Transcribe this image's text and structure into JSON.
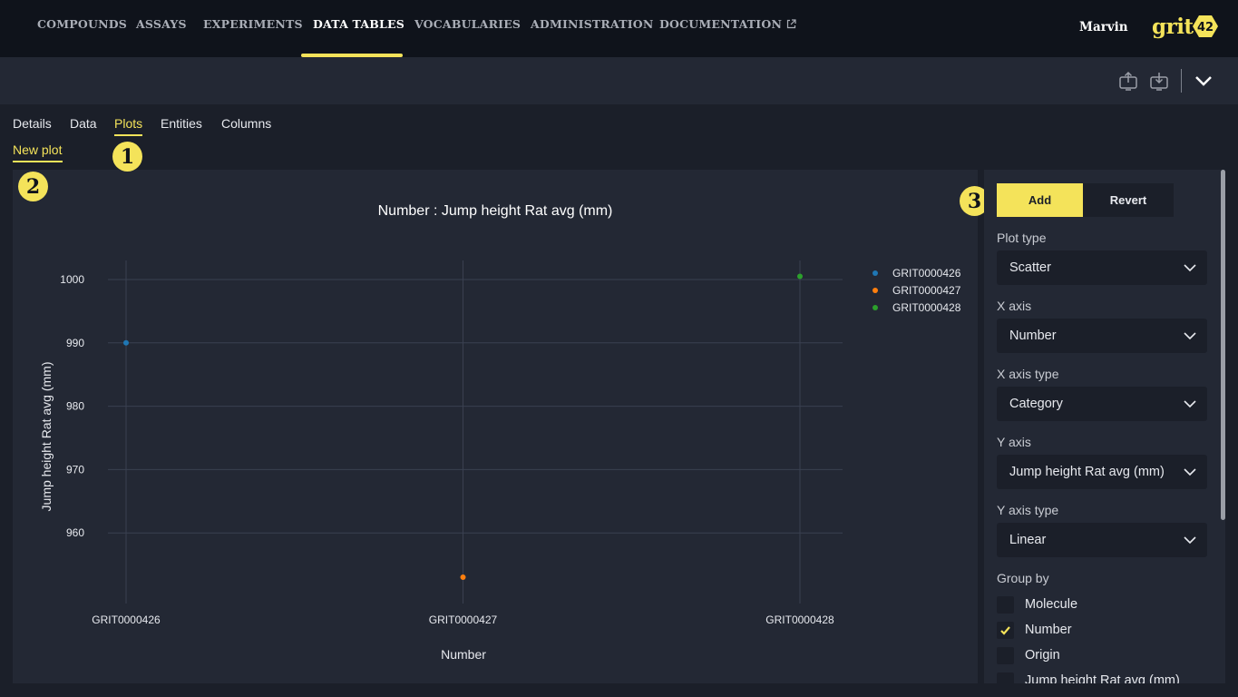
{
  "nav": {
    "items": [
      "COMPOUNDS",
      "ASSAYS",
      "EXPERIMENTS",
      "DATA TABLES",
      "VOCABULARIES",
      "ADMINISTRATION",
      "DOCUMENTATION"
    ],
    "active": "DATA TABLES",
    "user": "Marvin",
    "logo_text": "grit",
    "logo_badge": "42"
  },
  "toolbar": {
    "icons": [
      "upload-icon",
      "download-icon",
      "chevron-down-icon"
    ]
  },
  "tabs": {
    "items": [
      "Details",
      "Data",
      "Plots",
      "Entities",
      "Columns"
    ],
    "active": "Plots",
    "subtab": "New plot"
  },
  "markers": [
    "1",
    "2",
    "3"
  ],
  "chart_data": {
    "type": "scatter",
    "title": "Number : Jump height Rat avg (mm)",
    "xlabel": "Number",
    "ylabel": "Jump height Rat avg (mm)",
    "x_type": "category",
    "categories": [
      "GRIT0000426",
      "GRIT0000427",
      "GRIT0000428"
    ],
    "y_ticks": [
      960,
      970,
      980,
      990,
      1000
    ],
    "ylim": [
      950,
      1003
    ],
    "grid": true,
    "legend_position": "top-right",
    "series": [
      {
        "name": "GRIT0000426",
        "color": "#1f77b4",
        "x": [
          "GRIT0000426"
        ],
        "y": [
          990
        ]
      },
      {
        "name": "GRIT0000427",
        "color": "#ff7f0e",
        "x": [
          "GRIT0000427"
        ],
        "y": [
          953
        ]
      },
      {
        "name": "GRIT0000428",
        "color": "#2ca02c",
        "x": [
          "GRIT0000428"
        ],
        "y": [
          1000.5
        ]
      }
    ]
  },
  "side": {
    "add_label": "Add",
    "revert_label": "Revert",
    "fields": [
      {
        "label": "Plot type",
        "value": "Scatter"
      },
      {
        "label": "X axis",
        "value": "Number"
      },
      {
        "label": "X axis type",
        "value": "Category"
      },
      {
        "label": "Y axis",
        "value": "Jump height Rat avg (mm)"
      },
      {
        "label": "Y axis type",
        "value": "Linear"
      }
    ],
    "group_by_label": "Group by",
    "group_by": [
      {
        "label": "Molecule",
        "checked": false
      },
      {
        "label": "Number",
        "checked": true
      },
      {
        "label": "Origin",
        "checked": false
      },
      {
        "label": "Jump height Rat avg (mm)",
        "checked": false
      }
    ]
  },
  "colors": {
    "accent": "#f4e35a",
    "nav_bg": "#0f131b",
    "panel_bg": "#232834",
    "page_bg": "#1b1f29"
  }
}
